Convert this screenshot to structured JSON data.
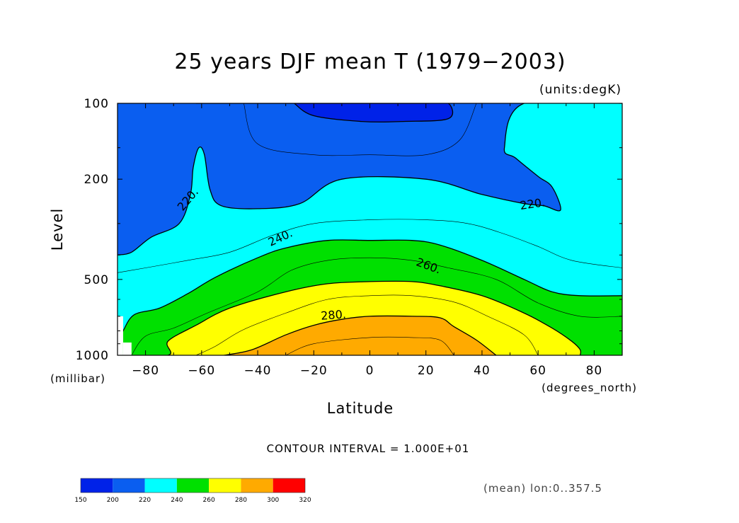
{
  "chart_data": {
    "type": "contour",
    "title": "25 years DJF mean T  (1979−2003)",
    "units_label": "(units:degK)",
    "xlabel": "Latitude",
    "x_units": "(degrees_north)",
    "ylabel": "Level",
    "y_units": "(millibar)",
    "xlim": [
      -90,
      90
    ],
    "ylim": [
      1000,
      100
    ],
    "y_scale": "log",
    "x_ticks": [
      -80,
      -60,
      -40,
      -20,
      0,
      20,
      40,
      60,
      80
    ],
    "x_tick_labels": [
      "−80",
      "−60",
      "−40",
      "−20",
      "0",
      "20",
      "40",
      "60",
      "80"
    ],
    "y_ticks": [
      100,
      200,
      500,
      1000
    ],
    "y_tick_labels": [
      "100",
      "200",
      "500",
      "1000"
    ],
    "contour_interval_text": "CONTOUR INTERVAL = 1.000E+01",
    "contour_labels": [
      {
        "text": "220.",
        "lat": -65,
        "level": 240
      },
      {
        "text": "220.",
        "lat": 58,
        "level": 250
      },
      {
        "text": "240.",
        "lat": -32,
        "level": 340
      },
      {
        "text": "260.",
        "lat": 21,
        "level": 440
      },
      {
        "text": "280.",
        "lat": -13,
        "level": 690
      }
    ],
    "levels_filled": [
      {
        "min": 150,
        "max": 200,
        "color": "#0022e8"
      },
      {
        "min": 200,
        "max": 220,
        "color": "#0a5ef0"
      },
      {
        "min": 220,
        "max": 240,
        "color": "#00ffff"
      },
      {
        "min": 240,
        "max": 260,
        "color": "#00e000"
      },
      {
        "min": 260,
        "max": 280,
        "color": "#ffff00"
      },
      {
        "min": 280,
        "max": 300,
        "color": "#ffaa00"
      },
      {
        "min": 300,
        "max": 320,
        "color": "#ff0000"
      }
    ],
    "colorbar_ticks": [
      "150",
      "200",
      "220",
      "240",
      "260",
      "280",
      "300",
      "320"
    ],
    "footer_note": "(mean) lon:0..357.5",
    "boundaries": [
      {
        "name": "t200",
        "level": 200,
        "points": [
          [
            -62,
            100
          ],
          [
            -20,
            100
          ],
          [
            0,
            100
          ],
          [
            20,
            100
          ],
          [
            28,
            100
          ],
          [
            28,
            115
          ],
          [
            12,
            118
          ],
          [
            -3,
            118
          ],
          [
            -20,
            112
          ],
          [
            -27,
            100
          ]
        ]
      },
      {
        "name": "t220",
        "level": 220,
        "points": [
          [
            -90,
            400
          ],
          [
            -85,
            390
          ],
          [
            -78,
            340
          ],
          [
            -68,
            300
          ],
          [
            -64,
            230
          ],
          [
            -63,
            180
          ],
          [
            -61,
            150
          ],
          [
            -59,
            160
          ],
          [
            -57,
            220
          ],
          [
            -53,
            255
          ],
          [
            -40,
            262
          ],
          [
            -25,
            250
          ],
          [
            -10,
            200
          ],
          [
            20,
            200
          ],
          [
            40,
            230
          ],
          [
            55,
            250
          ],
          [
            62,
            255
          ],
          [
            68,
            265
          ],
          [
            65,
            215
          ],
          [
            60,
            195
          ],
          [
            52,
            165
          ],
          [
            48,
            150
          ],
          [
            55,
            100
          ],
          [
            90,
            100
          ]
        ]
      },
      {
        "name": "t240",
        "level": 240,
        "points": [
          [
            -90,
            895
          ],
          [
            -88,
            800
          ],
          [
            -84,
            690
          ],
          [
            -75,
            650
          ],
          [
            -65,
            570
          ],
          [
            -55,
            490
          ],
          [
            -40,
            410
          ],
          [
            -30,
            375
          ],
          [
            -15,
            350
          ],
          [
            0,
            350
          ],
          [
            15,
            350
          ],
          [
            25,
            365
          ],
          [
            40,
            420
          ],
          [
            55,
            500
          ],
          [
            65,
            560
          ],
          [
            75,
            580
          ],
          [
            90,
            580
          ]
        ]
      },
      {
        "name": "t260",
        "level": 260,
        "points": [
          [
            -90,
            1000
          ],
          [
            -72,
            1000
          ],
          [
            -72,
            880
          ],
          [
            -62,
            760
          ],
          [
            -50,
            650
          ],
          [
            -30,
            560
          ],
          [
            -15,
            520
          ],
          [
            0,
            510
          ],
          [
            15,
            510
          ],
          [
            25,
            530
          ],
          [
            40,
            580
          ],
          [
            55,
            680
          ],
          [
            65,
            780
          ],
          [
            72,
            880
          ],
          [
            75,
            950
          ],
          [
            75,
            1000
          ]
        ]
      },
      {
        "name": "t280",
        "level": 280,
        "points": [
          [
            -52,
            1000
          ],
          [
            -42,
            950
          ],
          [
            -30,
            830
          ],
          [
            -20,
            760
          ],
          [
            -10,
            720
          ],
          [
            0,
            700
          ],
          [
            15,
            700
          ],
          [
            25,
            710
          ],
          [
            30,
            770
          ],
          [
            38,
            870
          ],
          [
            45,
            1000
          ]
        ]
      }
    ],
    "thin_contours": [
      {
        "name": "t210",
        "points": [
          [
            -45,
            100
          ],
          [
            -40,
            145
          ],
          [
            -20,
            160
          ],
          [
            0,
            160
          ],
          [
            20,
            160
          ],
          [
            32,
            140
          ],
          [
            38,
            100
          ]
        ]
      },
      {
        "name": "t230",
        "points": [
          [
            -90,
            470
          ],
          [
            -80,
            450
          ],
          [
            -65,
            420
          ],
          [
            -50,
            390
          ],
          [
            -35,
            335
          ],
          [
            -20,
            300
          ],
          [
            0,
            290
          ],
          [
            20,
            290
          ],
          [
            35,
            300
          ],
          [
            48,
            330
          ],
          [
            60,
            370
          ],
          [
            72,
            420
          ],
          [
            90,
            450
          ]
        ]
      },
      {
        "name": "t250",
        "points": [
          [
            -85,
            1000
          ],
          [
            -80,
            840
          ],
          [
            -70,
            780
          ],
          [
            -58,
            680
          ],
          [
            -40,
            560
          ],
          [
            -28,
            460
          ],
          [
            -15,
            420
          ],
          [
            0,
            410
          ],
          [
            15,
            420
          ],
          [
            28,
            450
          ],
          [
            45,
            500
          ],
          [
            60,
            620
          ],
          [
            75,
            700
          ],
          [
            90,
            700
          ]
        ]
      },
      {
        "name": "t270",
        "points": [
          [
            -62,
            1000
          ],
          [
            -55,
            920
          ],
          [
            -45,
            790
          ],
          [
            -30,
            680
          ],
          [
            -15,
            600
          ],
          [
            0,
            580
          ],
          [
            15,
            580
          ],
          [
            30,
            615
          ],
          [
            42,
            700
          ],
          [
            55,
            830
          ],
          [
            60,
            1000
          ]
        ]
      },
      {
        "name": "t290",
        "points": [
          [
            -30,
            1000
          ],
          [
            -20,
            900
          ],
          [
            0,
            850
          ],
          [
            15,
            850
          ],
          [
            25,
            870
          ],
          [
            30,
            1000
          ]
        ]
      }
    ]
  }
}
